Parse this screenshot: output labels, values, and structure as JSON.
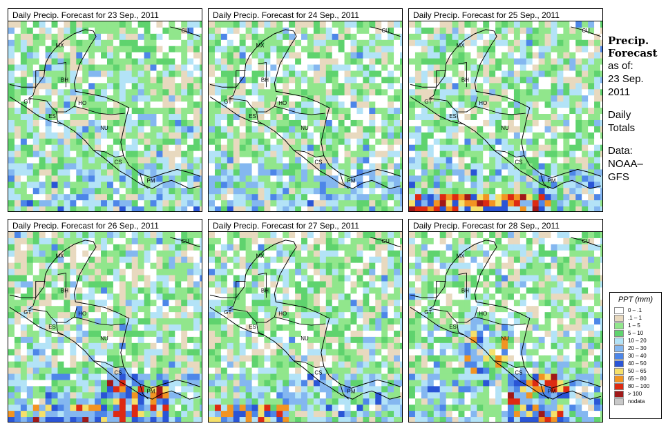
{
  "panels": [
    {
      "title": "Daily Precip. Forecast for  23 Sep., 2011",
      "seed": 11,
      "heavy": []
    },
    {
      "title": "Daily Precip. Forecast for  24 Sep., 2011",
      "seed": 23,
      "heavy": []
    },
    {
      "title": "Daily Precip. Forecast for  25 Sep., 2011",
      "seed": 37,
      "heavy": [
        "south-band"
      ]
    },
    {
      "title": "Daily Precip. Forecast for  26 Sep., 2011",
      "seed": 41,
      "heavy": [
        "south-band",
        "costa-rica"
      ]
    },
    {
      "title": "Daily Precip. Forecast for  27 Sep., 2011",
      "seed": 53,
      "heavy": [
        "west-band"
      ]
    },
    {
      "title": "Daily Precip. Forecast for  28 Sep., 2011",
      "seed": 67,
      "heavy": [
        "salvador",
        "costa-rica"
      ]
    }
  ],
  "place_labels": [
    "MX",
    "CU",
    "BH",
    "GT",
    "HO",
    "ES",
    "NU",
    "CS",
    "PM"
  ],
  "side": {
    "title_line1": "Precip.",
    "title_line2": "Forecast",
    "asof_line1": "as of:",
    "asof_line2": "23 Sep.",
    "asof_line3": "2011",
    "daily_line1": "Daily",
    "daily_line2": "Totals",
    "data_line1": "Data:",
    "data_line2": "NOAA–",
    "data_line3": "GFS"
  },
  "legend": {
    "title": "PPT (mm)",
    "items": [
      {
        "label": "0 – .1",
        "color": "#ffffff"
      },
      {
        "label": ".1 – 1",
        "color": "#e8d9bf"
      },
      {
        "label": "1 – 5",
        "color": "#91e68c"
      },
      {
        "label": "5 – 10",
        "color": "#5fd36e"
      },
      {
        "label": "10 – 20",
        "color": "#b3e3f7"
      },
      {
        "label": "20 – 30",
        "color": "#84b7f0"
      },
      {
        "label": "30 – 40",
        "color": "#4d86e8"
      },
      {
        "label": "40 – 50",
        "color": "#2a55d6"
      },
      {
        "label": "50 – 65",
        "color": "#f5e06a"
      },
      {
        "label": "65 – 80",
        "color": "#f29422"
      },
      {
        "label": "80 – 100",
        "color": "#dd2a12"
      },
      {
        "label": "> 100",
        "color": "#a01818"
      },
      {
        "label": "nodata",
        "color": "#c8c8c8"
      }
    ]
  }
}
